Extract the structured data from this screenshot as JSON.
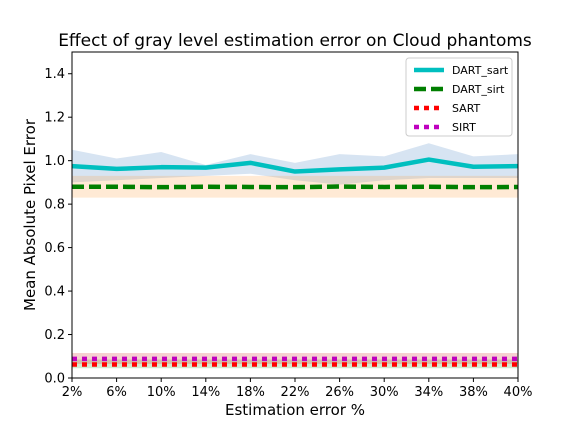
{
  "chart_data": {
    "type": "line",
    "title": "Effect of gray level estimation error on Cloud phantoms",
    "xlabel": "Estimation error %",
    "ylabel": "Mean Absolute Pixel Error",
    "categories": [
      "2%",
      "6%",
      "10%",
      "14%",
      "18%",
      "22%",
      "26%",
      "30%",
      "34%",
      "38%",
      "40%"
    ],
    "ylim": [
      0,
      1.5
    ],
    "yticks": [
      "0.0",
      "0.2",
      "0.4",
      "0.6",
      "0.8",
      "1.0",
      "1.2",
      "1.4"
    ],
    "grid": false,
    "legend_position": "top-right",
    "series": [
      {
        "name": "DART_sart",
        "color": "#00bfbf",
        "line_style": "solid",
        "values": [
          0.975,
          0.962,
          0.97,
          0.968,
          0.99,
          0.95,
          0.96,
          0.968,
          1.005,
          0.972,
          0.975
        ],
        "band_lower": [
          0.9,
          0.91,
          0.92,
          0.93,
          0.94,
          0.91,
          0.89,
          0.91,
          0.92,
          0.92,
          0.92
        ],
        "band_upper": [
          1.05,
          1.01,
          1.04,
          0.98,
          1.03,
          0.99,
          1.03,
          1.02,
          1.08,
          1.02,
          1.03
        ],
        "band_color": "#4a86c6"
      },
      {
        "name": "DART_sirt",
        "color": "#007f00",
        "line_style": "dashed",
        "values": [
          0.88,
          0.88,
          0.878,
          0.88,
          0.879,
          0.878,
          0.881,
          0.879,
          0.88,
          0.878,
          0.879
        ],
        "band_lower": [
          0.83,
          0.83,
          0.83,
          0.83,
          0.83,
          0.83,
          0.83,
          0.83,
          0.83,
          0.83,
          0.83
        ],
        "band_upper": [
          0.93,
          0.93,
          0.93,
          0.93,
          0.93,
          0.93,
          0.93,
          0.93,
          0.93,
          0.93,
          0.93
        ],
        "band_color": "#ff9f40"
      },
      {
        "name": "SART",
        "color": "#ff0000",
        "line_style": "dotted",
        "values": [
          0.062,
          0.062,
          0.062,
          0.062,
          0.062,
          0.062,
          0.062,
          0.062,
          0.062,
          0.062,
          0.062
        ],
        "band_lower": [
          0.045,
          0.045,
          0.045,
          0.045,
          0.045,
          0.045,
          0.045,
          0.045,
          0.045,
          0.045,
          0.045
        ],
        "band_upper": [
          0.085,
          0.085,
          0.085,
          0.085,
          0.085,
          0.085,
          0.085,
          0.085,
          0.085,
          0.085,
          0.085
        ],
        "band_color": "#2ca02c"
      },
      {
        "name": "SIRT",
        "color": "#bf00bf",
        "line_style": "dotted",
        "values": [
          0.088,
          0.088,
          0.088,
          0.088,
          0.088,
          0.088,
          0.088,
          0.088,
          0.088,
          0.088,
          0.088
        ],
        "band_lower": [
          0.065,
          0.065,
          0.065,
          0.065,
          0.065,
          0.065,
          0.065,
          0.065,
          0.065,
          0.065,
          0.065
        ],
        "band_upper": [
          0.115,
          0.115,
          0.115,
          0.115,
          0.115,
          0.115,
          0.115,
          0.115,
          0.115,
          0.115,
          0.115
        ],
        "band_color": "#d62728"
      }
    ]
  }
}
